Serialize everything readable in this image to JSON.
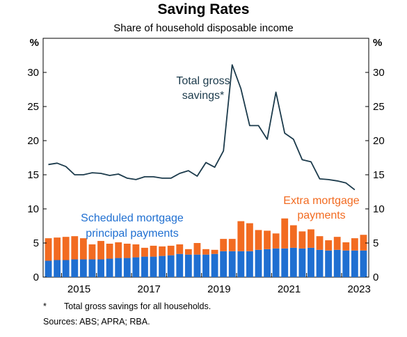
{
  "chart_data": {
    "type": "bar",
    "title": "Saving Rates",
    "subtitle": "Share of household disposable income",
    "unit_label": "%",
    "ylim": [
      0,
      35
    ],
    "yticks": [
      "0",
      "5",
      "10",
      "15",
      "20",
      "25",
      "30"
    ],
    "xticks": [
      "2015",
      "2017",
      "2019",
      "2021",
      "2023"
    ],
    "x_start": "2014-Q3",
    "grid": false,
    "categories": [
      "2014-Q3",
      "2014-Q4",
      "2015-Q1",
      "2015-Q2",
      "2015-Q3",
      "2015-Q4",
      "2016-Q1",
      "2016-Q2",
      "2016-Q3",
      "2016-Q4",
      "2017-Q1",
      "2017-Q2",
      "2017-Q3",
      "2017-Q4",
      "2018-Q1",
      "2018-Q2",
      "2018-Q3",
      "2018-Q4",
      "2019-Q1",
      "2019-Q2",
      "2019-Q3",
      "2019-Q4",
      "2020-Q1",
      "2020-Q2",
      "2020-Q3",
      "2020-Q4",
      "2021-Q1",
      "2021-Q2",
      "2021-Q3",
      "2021-Q4",
      "2022-Q1",
      "2022-Q2",
      "2022-Q3",
      "2022-Q4",
      "2023-Q1",
      "2023-Q2",
      "2023-Q3"
    ],
    "series": [
      {
        "name": "Scheduled mortgage principal payments",
        "kind": "bar-stacked",
        "color": "#1f6fd1",
        "values": [
          2.4,
          2.5,
          2.5,
          2.6,
          2.6,
          2.6,
          2.6,
          2.7,
          2.8,
          2.8,
          2.9,
          3.0,
          3.0,
          3.1,
          3.2,
          3.4,
          3.3,
          3.3,
          3.3,
          3.4,
          3.8,
          3.8,
          3.8,
          3.8,
          4.0,
          4.1,
          4.2,
          4.2,
          4.3,
          4.2,
          4.3,
          4.0,
          3.9,
          4.0,
          3.9,
          3.9,
          3.9
        ]
      },
      {
        "name": "Extra mortgage payments",
        "kind": "bar-stacked",
        "color": "#f26b21",
        "values": [
          3.3,
          3.3,
          3.4,
          3.4,
          3.1,
          2.2,
          2.7,
          2.2,
          2.3,
          2.1,
          1.9,
          1.3,
          1.6,
          1.4,
          1.4,
          1.4,
          0.8,
          1.7,
          0.8,
          0.6,
          1.8,
          1.8,
          4.4,
          4.1,
          2.9,
          2.7,
          2.2,
          4.4,
          3.3,
          2.5,
          2.7,
          2.0,
          1.5,
          1.9,
          1.2,
          1.8,
          2.3
        ]
      },
      {
        "name": "Total gross savings*",
        "kind": "line",
        "color": "#1b3a4b",
        "values": [
          16.5,
          16.7,
          16.2,
          15.0,
          15.0,
          15.3,
          15.2,
          14.9,
          15.1,
          14.5,
          14.3,
          14.7,
          14.7,
          14.5,
          14.5,
          15.2,
          15.6,
          14.8,
          16.8,
          16.1,
          18.5,
          31.1,
          27.6,
          22.2,
          22.2,
          20.2,
          27.1,
          21.1,
          20.2,
          17.2,
          16.9,
          14.4,
          14.3,
          14.1,
          13.8,
          12.8,
          null
        ]
      }
    ],
    "annotations": {
      "line_label_1": "Total gross",
      "line_label_2": "savings*",
      "extra_label_1": "Extra mortgage",
      "extra_label_2": "payments",
      "sched_label_1": "Scheduled mortgage",
      "sched_label_2": "principal payments"
    }
  },
  "footnote": {
    "marker": "*",
    "text": "Total gross savings for all households.",
    "sources": "Sources: ABS; APRA; RBA."
  }
}
